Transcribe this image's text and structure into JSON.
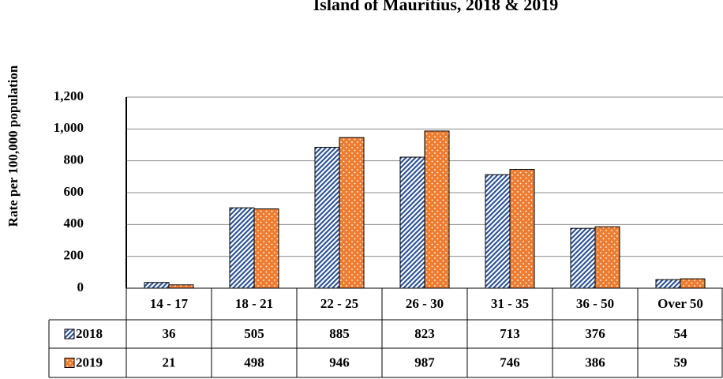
{
  "chart_data": {
    "type": "bar",
    "title": "Island of Mauritius, 2018  & 2019",
    "y_label": "Rate per 100,000 population",
    "categories": [
      "14 - 17",
      "18 - 21",
      "22 - 25",
      "26 - 30",
      "31 - 35",
      "36 - 50",
      "Over 50"
    ],
    "series": [
      {
        "name": "2018",
        "color": "#2f5597",
        "values": [
          36,
          505,
          885,
          823,
          713,
          376,
          54
        ]
      },
      {
        "name": "2019",
        "color": "#ed7d31",
        "values": [
          21,
          498,
          946,
          987,
          746,
          386,
          59
        ]
      }
    ],
    "ylim": [
      0,
      1200
    ],
    "yticks": [
      0,
      200,
      400,
      600,
      800,
      {
        "value": 1000,
        "label": "1,000"
      },
      {
        "value": 1200,
        "label": "1,200"
      }
    ],
    "grid": true
  }
}
